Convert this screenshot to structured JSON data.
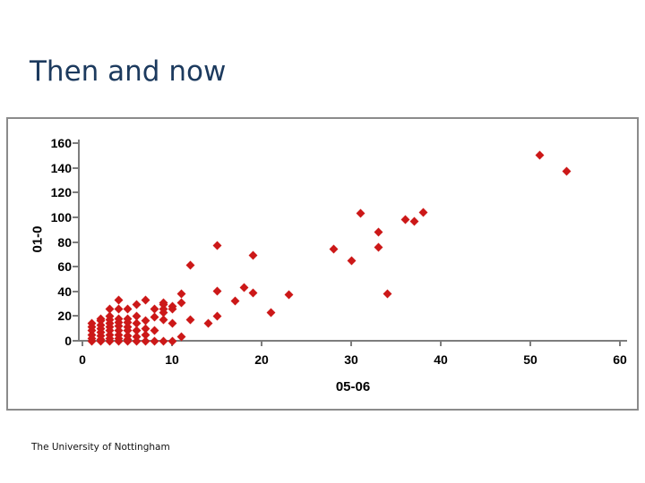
{
  "slide": {
    "title": "Then and now"
  },
  "footer": {
    "text": "The University of Nottingham"
  },
  "colors": {
    "title": "#1c3a5e",
    "marker": "#cc1818",
    "axis": "#7d7d7d",
    "frame_border": "#8b8b8b",
    "tick_label": "#000000"
  },
  "chart_data": {
    "type": "scatter",
    "title": "",
    "xlabel": "05-06",
    "ylabel": "01-0",
    "xlim": [
      0,
      60
    ],
    "ylim": [
      0,
      160
    ],
    "x_ticks": [
      0,
      10,
      20,
      30,
      40,
      50,
      60
    ],
    "y_ticks": [
      0,
      20,
      40,
      60,
      80,
      100,
      120,
      140,
      160
    ],
    "grid": false,
    "legend": false,
    "marker": "diamond",
    "points": [
      [
        1,
        0
      ],
      [
        1,
        2
      ],
      [
        1,
        5
      ],
      [
        1,
        8
      ],
      [
        1,
        11
      ],
      [
        1,
        14
      ],
      [
        2,
        0
      ],
      [
        2,
        1
      ],
      [
        2,
        4
      ],
      [
        2,
        7
      ],
      [
        2,
        10
      ],
      [
        2,
        13
      ],
      [
        2,
        16
      ],
      [
        2,
        18
      ],
      [
        3,
        0
      ],
      [
        3,
        2
      ],
      [
        3,
        5
      ],
      [
        3,
        8
      ],
      [
        3,
        11
      ],
      [
        3,
        14
      ],
      [
        3,
        17
      ],
      [
        3,
        20
      ],
      [
        3,
        26
      ],
      [
        4,
        0
      ],
      [
        4,
        2
      ],
      [
        4,
        5
      ],
      [
        4,
        8
      ],
      [
        4,
        12
      ],
      [
        4,
        15
      ],
      [
        4,
        18
      ],
      [
        4,
        26
      ],
      [
        4,
        33
      ],
      [
        5,
        0
      ],
      [
        5,
        1
      ],
      [
        5,
        4
      ],
      [
        5,
        8
      ],
      [
        5,
        11
      ],
      [
        5,
        15
      ],
      [
        5,
        18
      ],
      [
        5,
        26
      ],
      [
        6,
        0
      ],
      [
        6,
        3
      ],
      [
        6,
        8
      ],
      [
        6,
        14
      ],
      [
        6,
        20
      ],
      [
        6,
        29
      ],
      [
        7,
        0
      ],
      [
        7,
        5
      ],
      [
        7,
        10
      ],
      [
        7,
        16
      ],
      [
        7,
        33
      ],
      [
        8,
        0
      ],
      [
        8,
        8
      ],
      [
        8,
        19
      ],
      [
        8,
        26
      ],
      [
        9,
        0
      ],
      [
        9,
        17
      ],
      [
        9,
        23
      ],
      [
        9,
        26
      ],
      [
        9,
        29
      ],
      [
        9,
        31
      ],
      [
        10,
        0
      ],
      [
        10,
        14
      ],
      [
        10,
        26
      ],
      [
        10,
        28
      ],
      [
        11,
        3
      ],
      [
        11,
        31
      ],
      [
        11,
        38
      ],
      [
        12,
        17
      ],
      [
        12,
        61
      ],
      [
        14,
        14
      ],
      [
        15,
        20
      ],
      [
        15,
        40
      ],
      [
        15,
        77
      ],
      [
        17,
        32
      ],
      [
        18,
        43
      ],
      [
        19,
        39
      ],
      [
        19,
        69
      ],
      [
        21,
        23
      ],
      [
        23,
        37
      ],
      [
        28,
        74
      ],
      [
        30,
        65
      ],
      [
        31,
        103
      ],
      [
        33,
        76
      ],
      [
        33,
        88
      ],
      [
        34,
        38
      ],
      [
        36,
        98
      ],
      [
        37,
        97
      ],
      [
        38,
        104
      ],
      [
        51,
        150
      ],
      [
        54,
        137
      ]
    ]
  }
}
